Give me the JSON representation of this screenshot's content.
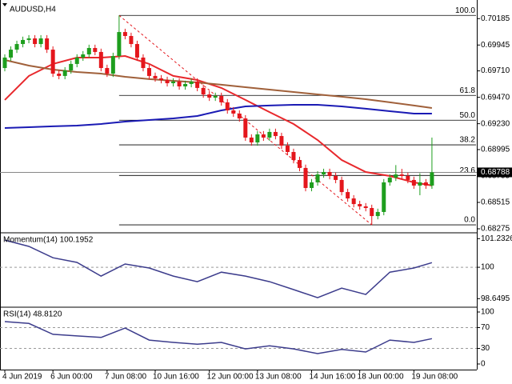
{
  "chart_data": [
    {
      "type": "candlestick",
      "title": "AUDUSD,H4",
      "categories": [
        "4 Jun 2019",
        null,
        null,
        null,
        null,
        null,
        null,
        null,
        "6 Jun 00:00",
        null,
        null,
        null,
        null,
        null,
        null,
        null,
        null,
        "7 Jun 08:00",
        null,
        null,
        null,
        null,
        null,
        null,
        null,
        "10 Jun 16:00",
        null,
        null,
        null,
        null,
        null,
        null,
        null,
        null,
        "12 Jun 00:00",
        null,
        null,
        null,
        null,
        null,
        null,
        null,
        "13 Jun 08:00",
        null,
        null,
        null,
        null,
        null,
        null,
        null,
        null,
        "14 Jun 16:00",
        null,
        null,
        null,
        null,
        null,
        null,
        null,
        "18 Jun 00:00",
        null,
        null,
        null,
        null,
        null,
        null,
        null,
        null,
        "19 Jun 08:00",
        null,
        null,
        null
      ],
      "open": [
        0.69736,
        0.69831,
        0.69903,
        0.69954,
        0.69991,
        0.70005,
        0.69954,
        0.70005,
        0.69903,
        0.69685,
        0.69664,
        0.69714,
        0.69773,
        0.69831,
        0.6986,
        0.69918,
        0.69882,
        0.69736,
        0.69685,
        0.69845,
        0.70063,
        0.70027,
        0.69954,
        0.69831,
        0.69736,
        0.69664,
        0.69642,
        0.69627,
        0.69598,
        0.69613,
        0.69569,
        0.69591,
        0.69613,
        0.69555,
        0.69496,
        0.69467,
        0.69482,
        0.69424,
        0.69351,
        0.69322,
        0.69278,
        0.69104,
        0.6906,
        0.69133,
        0.69104,
        0.69155,
        0.69118,
        0.69031,
        0.68973,
        0.689,
        0.68828,
        0.68646,
        0.68697,
        0.68769,
        0.68791,
        0.68755,
        0.68719,
        0.68609,
        0.68551,
        0.685,
        0.68479,
        0.68464,
        0.68391,
        0.68428,
        0.68697,
        0.6874,
        0.68769,
        0.68755,
        0.68719,
        0.68668,
        0.68697,
        0.68668
      ],
      "high": [
        0.69861,
        0.69933,
        0.69984,
        0.70021,
        0.70035,
        0.70035,
        0.70035,
        0.70035,
        0.69933,
        0.69715,
        0.69744,
        0.69803,
        0.69861,
        0.6989,
        0.69948,
        0.69948,
        0.69912,
        0.69766,
        0.69875,
        0.70214,
        0.70093,
        0.70057,
        0.69984,
        0.69861,
        0.69766,
        0.69694,
        0.69672,
        0.69657,
        0.69643,
        0.69643,
        0.69621,
        0.69643,
        0.69643,
        0.69585,
        0.69526,
        0.69512,
        0.69512,
        0.69454,
        0.69381,
        0.69352,
        0.69308,
        0.69134,
        0.69163,
        0.69163,
        0.69185,
        0.69185,
        0.69148,
        0.69061,
        0.69003,
        0.6893,
        0.68858,
        0.68727,
        0.68799,
        0.68821,
        0.68821,
        0.68785,
        0.68749,
        0.68639,
        0.68581,
        0.6853,
        0.68509,
        0.68494,
        0.68458,
        0.68727,
        0.6877,
        0.68854,
        0.6882,
        0.68785,
        0.68749,
        0.6878,
        0.68727,
        0.69104
      ],
      "low": [
        0.69706,
        0.69801,
        0.69873,
        0.69924,
        0.69961,
        0.69924,
        0.69924,
        0.69873,
        0.69655,
        0.69634,
        0.69634,
        0.69684,
        0.69743,
        0.69801,
        0.6983,
        0.69852,
        0.69706,
        0.69655,
        0.69655,
        0.69815,
        0.69997,
        0.69924,
        0.69801,
        0.69706,
        0.69634,
        0.69612,
        0.69597,
        0.69568,
        0.69568,
        0.69539,
        0.69539,
        0.69561,
        0.69525,
        0.69466,
        0.69437,
        0.69437,
        0.69394,
        0.69321,
        0.69292,
        0.69248,
        0.69074,
        0.6903,
        0.6903,
        0.69074,
        0.69074,
        0.69088,
        0.69001,
        0.68943,
        0.6887,
        0.68798,
        0.68616,
        0.68616,
        0.68667,
        0.68739,
        0.68725,
        0.68689,
        0.68579,
        0.68521,
        0.6847,
        0.68449,
        0.68434,
        0.68311,
        0.68361,
        0.68398,
        0.68667,
        0.6871,
        0.68725,
        0.68689,
        0.68638,
        0.6858,
        0.68638,
        0.68638
      ],
      "close": [
        0.69831,
        0.69903,
        0.69954,
        0.69991,
        0.70005,
        0.69954,
        0.70005,
        0.69903,
        0.69685,
        0.69664,
        0.69714,
        0.69773,
        0.69831,
        0.6986,
        0.69918,
        0.69882,
        0.69736,
        0.69685,
        0.69845,
        0.70063,
        0.70027,
        0.69954,
        0.69831,
        0.69736,
        0.69664,
        0.69642,
        0.69627,
        0.69598,
        0.69613,
        0.69569,
        0.69591,
        0.69613,
        0.69555,
        0.69496,
        0.69467,
        0.69482,
        0.69424,
        0.69351,
        0.69322,
        0.69278,
        0.69104,
        0.6906,
        0.69133,
        0.69104,
        0.69155,
        0.69118,
        0.69031,
        0.68973,
        0.689,
        0.68828,
        0.68646,
        0.68697,
        0.68769,
        0.68791,
        0.68755,
        0.68719,
        0.68609,
        0.68551,
        0.685,
        0.68479,
        0.68464,
        0.68391,
        0.68428,
        0.68697,
        0.6874,
        0.68769,
        0.68755,
        0.68719,
        0.68668,
        0.68697,
        0.68668,
        0.68788
      ],
      "up_color": "#1e9e1e",
      "down_color": "#e4161c",
      "overlays": [
        {
          "color": "#e8282c",
          "x": [
            0,
            4,
            8,
            12,
            16,
            20,
            24,
            28,
            32,
            36,
            40,
            44,
            48,
            52,
            56,
            60,
            64,
            68,
            71
          ],
          "values": [
            0.69446,
            0.69664,
            0.69773,
            0.69831,
            0.69831,
            0.69845,
            0.69773,
            0.69664,
            0.69627,
            0.69555,
            0.69446,
            0.69336,
            0.69227,
            0.69082,
            0.689,
            0.68791,
            0.68755,
            0.68697,
            0.68668
          ]
        },
        {
          "color": "#1a1ab4",
          "x": [
            0,
            4,
            8,
            12,
            16,
            20,
            24,
            28,
            32,
            36,
            40,
            44,
            48,
            52,
            56,
            60,
            64,
            68,
            71
          ],
          "values": [
            0.69191,
            0.69198,
            0.69206,
            0.69213,
            0.69227,
            0.69249,
            0.69264,
            0.69278,
            0.693,
            0.69351,
            0.69387,
            0.69395,
            0.69402,
            0.69402,
            0.69387,
            0.69366,
            0.69344,
            0.69322,
            0.69322
          ]
        },
        {
          "color": "#a0603a",
          "x": [
            0,
            4,
            8,
            12,
            16,
            20,
            24,
            28,
            32,
            36,
            40,
            44,
            48,
            52,
            56,
            60,
            64,
            68,
            71
          ],
          "values": [
            0.69809,
            0.69758,
            0.69722,
            0.697,
            0.69685,
            0.69656,
            0.69635,
            0.6962,
            0.69605,
            0.69584,
            0.69562,
            0.6954,
            0.69518,
            0.69496,
            0.69475,
            0.69453,
            0.69424,
            0.69395,
            0.69373
          ]
        }
      ],
      "fib_levels": [
        {
          "level": "100.0",
          "price": 0.70214
        },
        {
          "level": "61.8",
          "price": 0.69487
        },
        {
          "level": "50.0",
          "price": 0.69262
        },
        {
          "level": "38.2",
          "price": 0.69038
        },
        {
          "level": "23.6",
          "price": 0.6876
        },
        {
          "level": "0.0",
          "price": 0.68311
        }
      ],
      "fib_color": "#e4161c",
      "current_price": 0.68788,
      "ylim": [
        0.68246,
        0.70325
      ],
      "yticks": [
        0.70185,
        0.69945,
        {
          "value": 0.6971,
          "label": "0.69710"
        },
        {
          "value": 0.6947,
          "label": "0.69470"
        },
        {
          "value": 0.6923,
          "label": "0.69230"
        },
        0.68995,
        0.68755,
        0.68515,
        0.68275
      ]
    },
    {
      "type": "line",
      "title": "Momentum(14) 100.1952",
      "color": "#3c3c8c",
      "x": [
        0,
        4,
        8,
        12,
        16,
        20,
        24,
        28,
        32,
        36,
        40,
        44,
        48,
        52,
        56,
        60,
        64,
        68,
        71
      ],
      "values": [
        101.17,
        100.9,
        100.41,
        100.21,
        99.62,
        100.14,
        99.97,
        99.62,
        99.38,
        99.79,
        99.62,
        99.38,
        99.04,
        98.69,
        99.1,
        98.83,
        99.79,
        99.97,
        100.2
      ],
      "levels": [
        100
      ],
      "ylim": [
        98.35,
        101.45
      ],
      "yticks": [
        101.2326,
        100,
        98.6495
      ]
    },
    {
      "type": "line",
      "title": "RSI(14) 48.8120",
      "color": "#3c3c8c",
      "x": [
        0,
        4,
        8,
        12,
        16,
        20,
        24,
        28,
        32,
        36,
        40,
        44,
        48,
        52,
        56,
        60,
        64,
        68,
        71
      ],
      "values": [
        81.5,
        78,
        57,
        54,
        51,
        69,
        46,
        41.5,
        38,
        41.5,
        29,
        35,
        29,
        20,
        28,
        23,
        46,
        41.5,
        48.8
      ],
      "levels": [
        70,
        30
      ],
      "ylim": [
        -10.8,
        107.7
      ],
      "yticks": [
        100,
        70,
        30,
        0
      ]
    }
  ]
}
